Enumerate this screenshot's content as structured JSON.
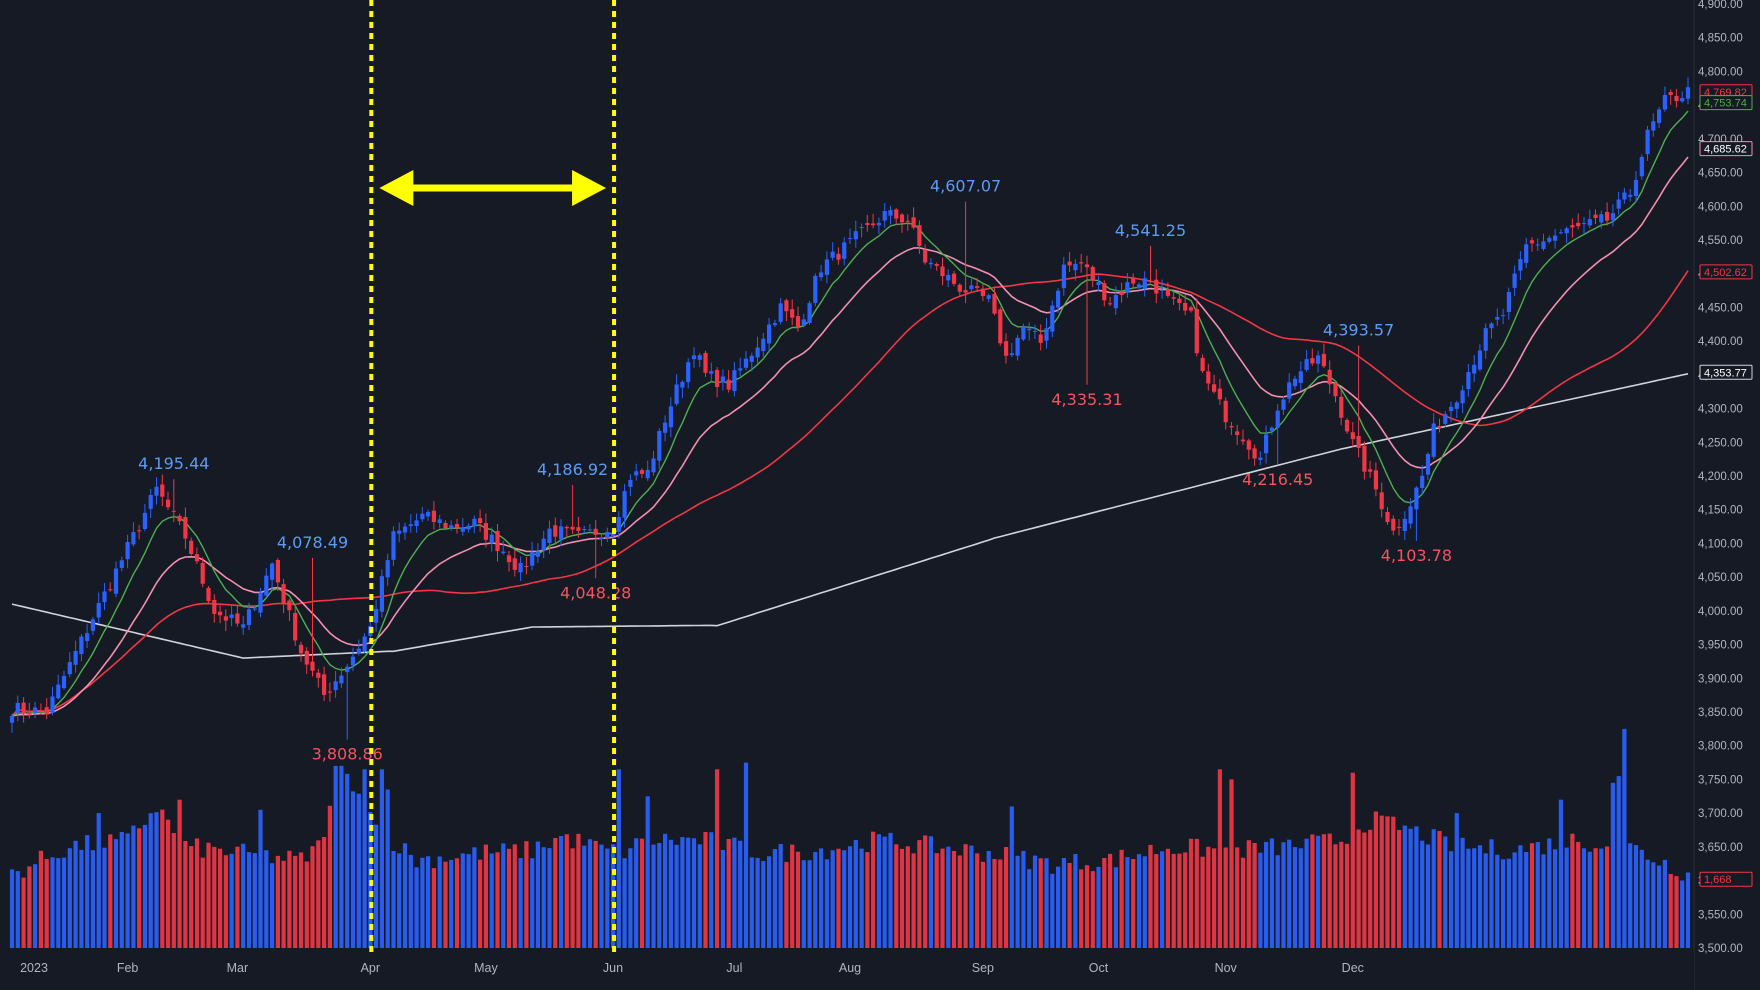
{
  "chart_data": {
    "type": "candlestick",
    "symbol_period": "2023 daily",
    "y_axis": {
      "range": [
        3500,
        4900
      ],
      "ticks": [
        3500,
        3550,
        3600,
        3650,
        3700,
        3750,
        3800,
        3850,
        3900,
        3950,
        4000,
        4050,
        4100,
        4150,
        4200,
        4250,
        4300,
        4350,
        4400,
        4450,
        4500,
        4550,
        4600,
        4650,
        4700,
        4750,
        4800,
        4850,
        4900
      ],
      "tick_labels": [
        "3,500.00",
        "3,550.00",
        "3,600.00",
        "3,650.00",
        "3,700.00",
        "3,750.00",
        "3,800.00",
        "3,850.00",
        "3,900.00",
        "3,950.00",
        "4,000.00",
        "4,050.00",
        "4,100.00",
        "4,150.00",
        "4,200.00",
        "4,250.00",
        "4,300.00",
        "4,350.00",
        "4,400.00",
        "4,450.00",
        "4,500.00",
        "4,550.00",
        "4,600.00",
        "4,650.00",
        "4,700.00",
        "4,750.00",
        "4,800.00",
        "4,850.00",
        "4,900.00"
      ]
    },
    "x_axis": {
      "labels": [
        "2023",
        "Feb",
        "Mar",
        "Apr",
        "May",
        "Jun",
        "Jul",
        "Aug",
        "Sep",
        "Oct",
        "Nov",
        "Dec"
      ]
    },
    "colors": {
      "background": "#161a25",
      "up": "#2962ff",
      "down": "#f23645",
      "ma_fast": "#4caf50",
      "ma_mid": "#f48fb1",
      "ma_slow": "#f23645",
      "ma_long": "#d1d4dc",
      "highlight": "#ffff00",
      "label_blue": "#5b9cf6",
      "label_red": "#f7525f"
    },
    "price_anchors": [
      [
        0,
        3855
      ],
      [
        6,
        3850
      ],
      [
        14,
        3990
      ],
      [
        21,
        4110
      ],
      [
        25,
        4180
      ],
      [
        30,
        4110
      ],
      [
        35,
        4000
      ],
      [
        40,
        3975
      ],
      [
        45,
        4070
      ],
      [
        50,
        3940
      ],
      [
        54,
        3875
      ],
      [
        58,
        3920
      ],
      [
        62,
        3975
      ],
      [
        66,
        4110
      ],
      [
        71,
        4140
      ],
      [
        76,
        4125
      ],
      [
        80,
        4130
      ],
      [
        85,
        4090
      ],
      [
        88,
        4060
      ],
      [
        93,
        4120
      ],
      [
        98,
        4110
      ],
      [
        104,
        4125
      ],
      [
        107,
        4200
      ],
      [
        110,
        4205
      ],
      [
        113,
        4285
      ],
      [
        118,
        4390
      ],
      [
        120,
        4350
      ],
      [
        124,
        4335
      ],
      [
        127,
        4370
      ],
      [
        133,
        4450
      ],
      [
        136,
        4420
      ],
      [
        140,
        4510
      ],
      [
        145,
        4545
      ],
      [
        151,
        4588
      ],
      [
        155,
        4580
      ],
      [
        158,
        4520
      ],
      [
        164,
        4480
      ],
      [
        169,
        4460
      ],
      [
        172,
        4375
      ],
      [
        175,
        4420
      ],
      [
        178,
        4398
      ],
      [
        182,
        4510
      ],
      [
        185,
        4515
      ],
      [
        190,
        4460
      ],
      [
        194,
        4490
      ],
      [
        197,
        4490
      ],
      [
        200,
        4460
      ],
      [
        204,
        4435
      ],
      [
        206,
        4350
      ],
      [
        210,
        4290
      ],
      [
        213,
        4260
      ],
      [
        216,
        4225
      ],
      [
        219,
        4305
      ],
      [
        222,
        4350
      ],
      [
        226,
        4375
      ],
      [
        229,
        4320
      ],
      [
        232,
        4248
      ],
      [
        236,
        4180
      ],
      [
        239,
        4117
      ],
      [
        242,
        4160
      ],
      [
        244,
        4199
      ],
      [
        246,
        4267
      ],
      [
        250,
        4320
      ],
      [
        255,
        4410
      ],
      [
        258,
        4440
      ],
      [
        262,
        4540
      ],
      [
        268,
        4560
      ],
      [
        272,
        4570
      ],
      [
        276,
        4580
      ],
      [
        280,
        4620
      ],
      [
        283,
        4705
      ],
      [
        286,
        4755
      ],
      [
        290,
        4770
      ]
    ],
    "volume_anchors": [
      [
        0,
        3610
      ],
      [
        10,
        3650
      ],
      [
        20,
        3660
      ],
      [
        25,
        3710
      ],
      [
        30,
        3650
      ],
      [
        40,
        3640
      ],
      [
        50,
        3630
      ],
      [
        53,
        3650
      ],
      [
        57,
        3760
      ],
      [
        60,
        3740
      ],
      [
        63,
        3680
      ],
      [
        70,
        3630
      ],
      [
        80,
        3640
      ],
      [
        90,
        3645
      ],
      [
        95,
        3665
      ],
      [
        105,
        3640
      ],
      [
        110,
        3660
      ],
      [
        120,
        3660
      ],
      [
        130,
        3640
      ],
      [
        140,
        3645
      ],
      [
        150,
        3660
      ],
      [
        160,
        3650
      ],
      [
        170,
        3640
      ],
      [
        180,
        3625
      ],
      [
        190,
        3630
      ],
      [
        200,
        3650
      ],
      [
        210,
        3645
      ],
      [
        220,
        3650
      ],
      [
        230,
        3660
      ],
      [
        235,
        3690
      ],
      [
        240,
        3680
      ],
      [
        250,
        3650
      ],
      [
        260,
        3645
      ],
      [
        270,
        3660
      ],
      [
        280,
        3650
      ],
      [
        290,
        3610
      ]
    ],
    "volume_spikes": [
      [
        56,
        3770
      ],
      [
        61,
        3765
      ],
      [
        65,
        3735
      ],
      [
        64,
        3765
      ],
      [
        127,
        3775
      ],
      [
        105,
        3765
      ],
      [
        122,
        3765
      ],
      [
        173,
        3710
      ],
      [
        209,
        3765
      ],
      [
        211,
        3750
      ],
      [
        232,
        3760
      ],
      [
        250,
        3700
      ],
      [
        268,
        3720
      ],
      [
        277,
        3745
      ],
      [
        279,
        3825
      ],
      [
        278,
        3755
      ],
      [
        110,
        3725
      ],
      [
        43,
        3705
      ],
      [
        15,
        3700
      ],
      [
        29,
        3720
      ]
    ],
    "volume_unit_note_axis": "volume bars drawn against price axis scale",
    "annotations": [
      {
        "text": "4,195.44",
        "session": 28,
        "price": 4195.44,
        "pos": "above",
        "color": "blue"
      },
      {
        "text": "4,078.49",
        "session": 52,
        "price": 4078.49,
        "pos": "above",
        "color": "blue"
      },
      {
        "text": "3,808.86",
        "session": 58,
        "price": 3808.86,
        "pos": "below",
        "color": "red"
      },
      {
        "text": "4,186.92",
        "session": 97,
        "price": 4186.92,
        "pos": "above",
        "color": "blue"
      },
      {
        "text": "4,048.28",
        "session": 101,
        "price": 4048.28,
        "pos": "below",
        "color": "red"
      },
      {
        "text": "4,607.07",
        "session": 165,
        "price": 4607.07,
        "pos": "above",
        "color": "blue"
      },
      {
        "text": "4,335.31",
        "session": 186,
        "price": 4335.31,
        "pos": "below",
        "color": "red"
      },
      {
        "text": "4,541.25",
        "session": 197,
        "price": 4541.25,
        "pos": "above",
        "color": "blue"
      },
      {
        "text": "4,216.45",
        "session": 219,
        "price": 4216.45,
        "pos": "below",
        "color": "red"
      },
      {
        "text": "4,393.57",
        "session": 233,
        "price": 4393.57,
        "pos": "above",
        "color": "blue"
      },
      {
        "text": "4,103.78",
        "session": 243,
        "price": 4103.78,
        "pos": "below",
        "color": "red"
      }
    ],
    "price_badges": [
      {
        "text": "4,769.82",
        "price": 4769.82,
        "color": "red"
      },
      {
        "text": "4,753.74",
        "price": 4753.74,
        "color": "green"
      },
      {
        "text": "4,685.62",
        "price": 4685.62,
        "color": "pink"
      },
      {
        "text": "4,502.62",
        "price": 4502.62,
        "color": "redsolid"
      },
      {
        "text": "4,353.77",
        "price": 4353.77,
        "color": "white"
      },
      {
        "text": "1,668",
        "price": 3602,
        "color": "red"
      }
    ],
    "highlight_window": {
      "start": "Apr",
      "end": "Jun"
    },
    "legend": "none",
    "grid": false
  }
}
